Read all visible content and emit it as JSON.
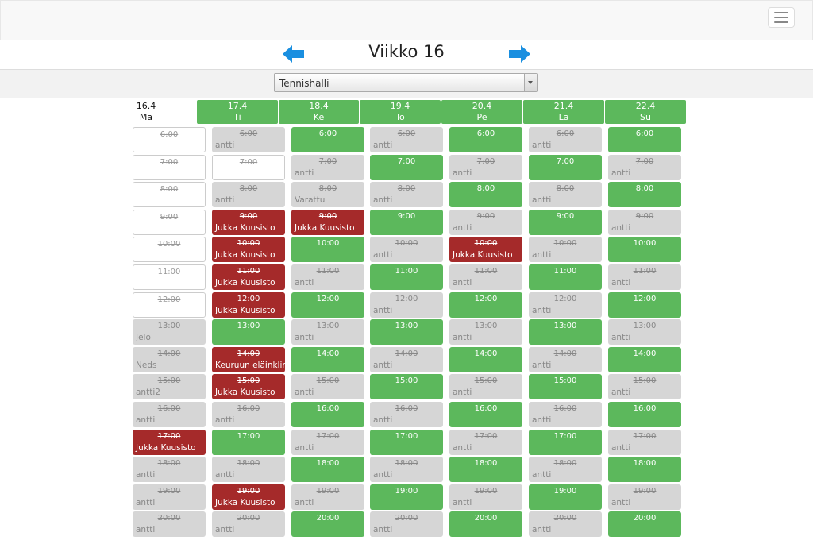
{
  "header": {
    "menu_icon": "hamburger-icon"
  },
  "week": {
    "title": "Viikko 16",
    "prev_icon": "arrow-left-icon",
    "next_icon": "arrow-right-icon",
    "arrow_color": "#1a8fe0"
  },
  "venue": {
    "selected": "Tennishalli"
  },
  "colors": {
    "open": "#5cb85c",
    "taken": "#d6d6d6",
    "mine": "#a52a2a",
    "past": "#ffffff"
  },
  "days": [
    {
      "date": "16.4",
      "name": "Ma",
      "highlight": false
    },
    {
      "date": "17.4",
      "name": "Ti",
      "highlight": true
    },
    {
      "date": "18.4",
      "name": "Ke",
      "highlight": true
    },
    {
      "date": "19.4",
      "name": "To",
      "highlight": true
    },
    {
      "date": "20.4",
      "name": "Pe",
      "highlight": true
    },
    {
      "date": "21.4",
      "name": "La",
      "highlight": true
    },
    {
      "date": "22.4",
      "name": "Su",
      "highlight": true
    }
  ],
  "times": [
    "6:00",
    "7:00",
    "8:00",
    "9:00",
    "10:00",
    "11:00",
    "12:00",
    "13:00",
    "14:00",
    "15:00",
    "16:00",
    "17:00",
    "18:00",
    "19:00",
    "20:00"
  ],
  "columns": [
    [
      {
        "s": "past",
        "n": ""
      },
      {
        "s": "past",
        "n": ""
      },
      {
        "s": "past",
        "n": ""
      },
      {
        "s": "past",
        "n": ""
      },
      {
        "s": "past",
        "n": ""
      },
      {
        "s": "past",
        "n": ""
      },
      {
        "s": "past",
        "n": ""
      },
      {
        "s": "taken",
        "n": "Jelo"
      },
      {
        "s": "taken",
        "n": "Neds"
      },
      {
        "s": "taken",
        "n": "antti2"
      },
      {
        "s": "taken",
        "n": "antti"
      },
      {
        "s": "mine",
        "n": "Jukka Kuusisto"
      },
      {
        "s": "taken",
        "n": "antti"
      },
      {
        "s": "taken",
        "n": "antti"
      },
      {
        "s": "taken",
        "n": "antti"
      }
    ],
    [
      {
        "s": "taken",
        "n": "antti"
      },
      {
        "s": "past",
        "n": ""
      },
      {
        "s": "taken",
        "n": "antti"
      },
      {
        "s": "mine",
        "n": "Jukka Kuusisto"
      },
      {
        "s": "mine",
        "n": "Jukka Kuusisto"
      },
      {
        "s": "mine",
        "n": "Jukka Kuusisto"
      },
      {
        "s": "mine",
        "n": "Jukka Kuusisto"
      },
      {
        "s": "open",
        "n": ""
      },
      {
        "s": "mine",
        "n": "Keuruun eläinklin"
      },
      {
        "s": "mine",
        "n": "Jukka Kuusisto"
      },
      {
        "s": "taken",
        "n": "antti"
      },
      {
        "s": "open",
        "n": ""
      },
      {
        "s": "taken",
        "n": "antti"
      },
      {
        "s": "mine",
        "n": "Jukka Kuusisto"
      },
      {
        "s": "taken",
        "n": "antti"
      }
    ],
    [
      {
        "s": "open",
        "n": ""
      },
      {
        "s": "taken",
        "n": "antti"
      },
      {
        "s": "taken",
        "n": "Varattu"
      },
      {
        "s": "mine",
        "n": "Jukka Kuusisto"
      },
      {
        "s": "open",
        "n": ""
      },
      {
        "s": "taken",
        "n": "antti"
      },
      {
        "s": "open",
        "n": ""
      },
      {
        "s": "taken",
        "n": "antti"
      },
      {
        "s": "open",
        "n": ""
      },
      {
        "s": "taken",
        "n": "antti"
      },
      {
        "s": "open",
        "n": ""
      },
      {
        "s": "taken",
        "n": "antti"
      },
      {
        "s": "open",
        "n": ""
      },
      {
        "s": "taken",
        "n": "antti"
      },
      {
        "s": "open",
        "n": ""
      }
    ],
    [
      {
        "s": "taken",
        "n": "antti"
      },
      {
        "s": "open",
        "n": ""
      },
      {
        "s": "taken",
        "n": "antti"
      },
      {
        "s": "open",
        "n": ""
      },
      {
        "s": "taken",
        "n": "antti"
      },
      {
        "s": "open",
        "n": ""
      },
      {
        "s": "taken",
        "n": "antti"
      },
      {
        "s": "open",
        "n": ""
      },
      {
        "s": "taken",
        "n": "antti"
      },
      {
        "s": "open",
        "n": ""
      },
      {
        "s": "taken",
        "n": "antti"
      },
      {
        "s": "open",
        "n": ""
      },
      {
        "s": "taken",
        "n": "antti"
      },
      {
        "s": "open",
        "n": ""
      },
      {
        "s": "taken",
        "n": "antti"
      }
    ],
    [
      {
        "s": "open",
        "n": ""
      },
      {
        "s": "taken",
        "n": "antti"
      },
      {
        "s": "open",
        "n": ""
      },
      {
        "s": "taken",
        "n": "antti"
      },
      {
        "s": "mine",
        "n": "Jukka Kuusisto"
      },
      {
        "s": "taken",
        "n": "antti"
      },
      {
        "s": "open",
        "n": ""
      },
      {
        "s": "taken",
        "n": "antti"
      },
      {
        "s": "open",
        "n": ""
      },
      {
        "s": "taken",
        "n": "antti"
      },
      {
        "s": "open",
        "n": ""
      },
      {
        "s": "taken",
        "n": "antti"
      },
      {
        "s": "open",
        "n": ""
      },
      {
        "s": "taken",
        "n": "antti"
      },
      {
        "s": "open",
        "n": ""
      }
    ],
    [
      {
        "s": "taken",
        "n": "antti"
      },
      {
        "s": "open",
        "n": ""
      },
      {
        "s": "taken",
        "n": "antti"
      },
      {
        "s": "open",
        "n": ""
      },
      {
        "s": "taken",
        "n": "antti"
      },
      {
        "s": "open",
        "n": ""
      },
      {
        "s": "taken",
        "n": "antti"
      },
      {
        "s": "open",
        "n": ""
      },
      {
        "s": "taken",
        "n": "antti"
      },
      {
        "s": "open",
        "n": ""
      },
      {
        "s": "taken",
        "n": "antti"
      },
      {
        "s": "open",
        "n": ""
      },
      {
        "s": "taken",
        "n": "antti"
      },
      {
        "s": "open",
        "n": ""
      },
      {
        "s": "taken",
        "n": "antti"
      }
    ],
    [
      {
        "s": "open",
        "n": ""
      },
      {
        "s": "taken",
        "n": "antti"
      },
      {
        "s": "open",
        "n": ""
      },
      {
        "s": "taken",
        "n": "antti"
      },
      {
        "s": "open",
        "n": ""
      },
      {
        "s": "taken",
        "n": "antti"
      },
      {
        "s": "open",
        "n": ""
      },
      {
        "s": "taken",
        "n": "antti"
      },
      {
        "s": "open",
        "n": ""
      },
      {
        "s": "taken",
        "n": "antti"
      },
      {
        "s": "open",
        "n": ""
      },
      {
        "s": "taken",
        "n": "antti"
      },
      {
        "s": "open",
        "n": ""
      },
      {
        "s": "taken",
        "n": "antti"
      },
      {
        "s": "open",
        "n": ""
      }
    ]
  ]
}
